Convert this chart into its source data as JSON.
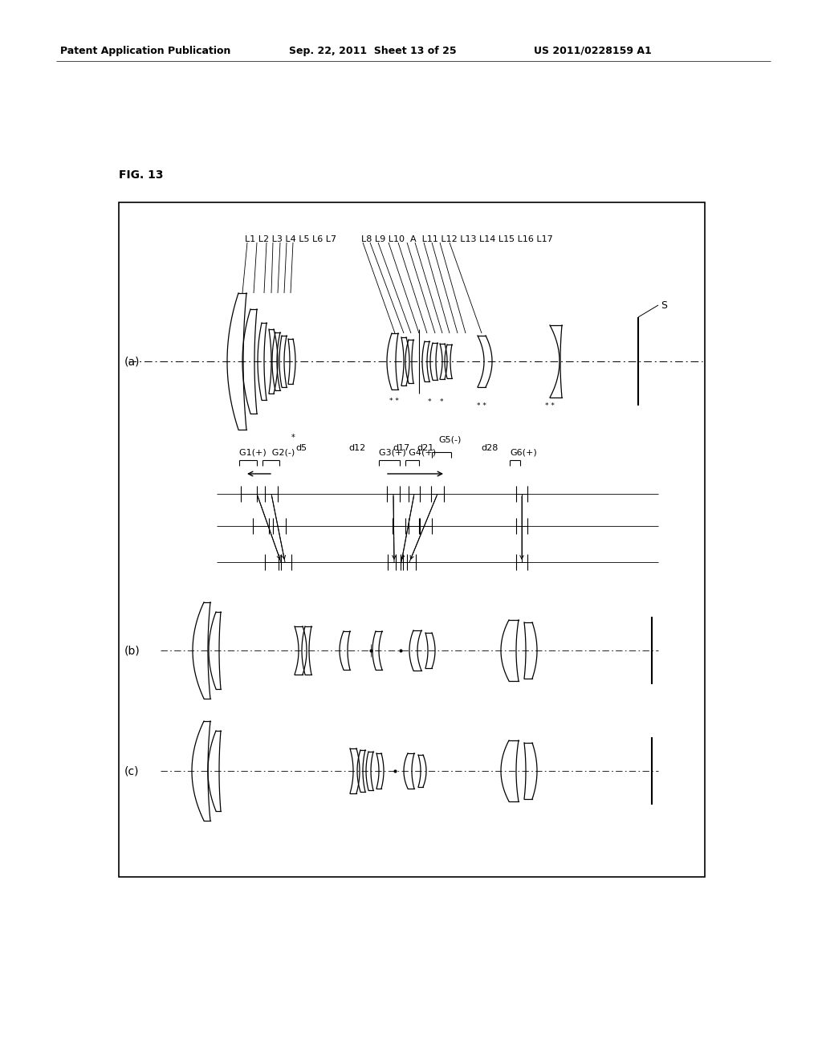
{
  "bg_color": "#ffffff",
  "page_header_left": "Patent Application Publication",
  "page_header_center": "Sep. 22, 2011  Sheet 13 of 25",
  "page_header_right": "US 2011/0228159 A1",
  "fig_label": "FIG. 13",
  "panel_a_label": "(a)",
  "panel_b_label": "(b)",
  "panel_c_label": "(c)"
}
